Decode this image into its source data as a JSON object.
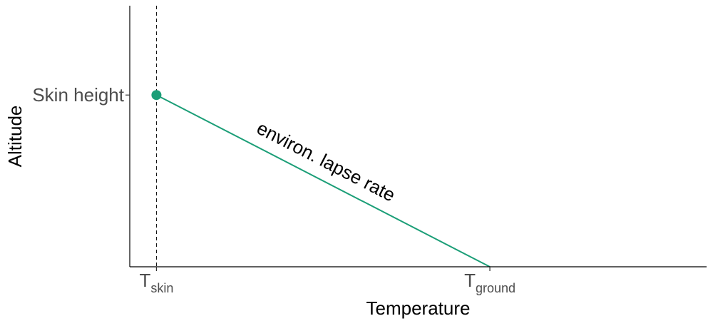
{
  "chart_data": {
    "type": "line",
    "title": "",
    "xlabel": "Temperature",
    "ylabel": "Altitude",
    "x_ticks": [
      {
        "value": 0,
        "base": "T",
        "sub": "skin"
      },
      {
        "value": 1,
        "base": "T",
        "sub": "ground"
      }
    ],
    "y_ticks": [
      {
        "value": 1,
        "label": "Skin height"
      }
    ],
    "xlim": [
      -0.08,
      1.65
    ],
    "ylim": [
      0,
      1.52
    ],
    "series": [
      {
        "name": "environ. lapse rate",
        "color": "#1b9e77",
        "points": [
          {
            "x": 0,
            "y": 1
          },
          {
            "x": 1,
            "y": 0
          }
        ]
      }
    ],
    "marker": {
      "x": 0,
      "y": 1,
      "color": "#1b9e77"
    },
    "vline": {
      "x": 0,
      "style": "dashed",
      "color": "#000000"
    },
    "annotation": {
      "text": "environ. lapse rate",
      "x": 0.5,
      "y": 0.58
    },
    "grid": false,
    "legend": "none"
  }
}
